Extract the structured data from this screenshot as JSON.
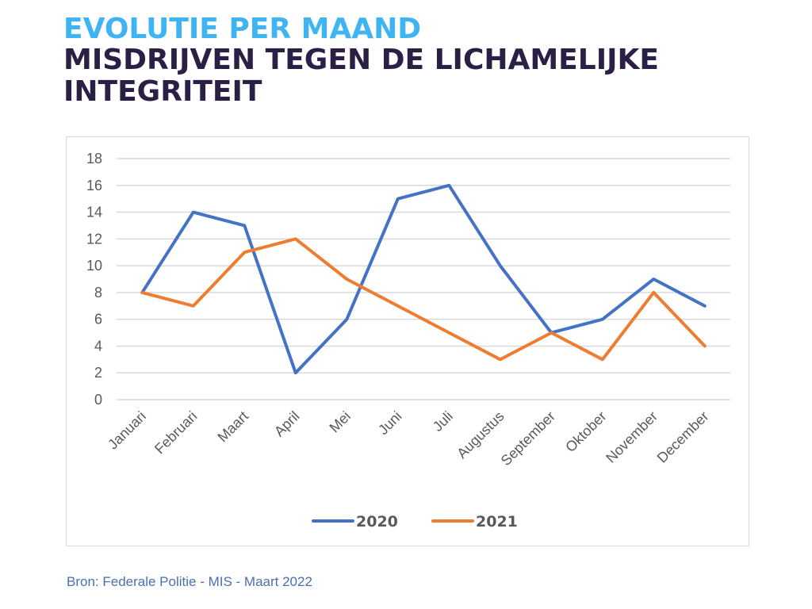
{
  "header": {
    "title_line1": "EVOLUTIE PER MAAND",
    "title_line2": "MISDRIJVEN TEGEN DE LICHAMELIJKE INTEGRITEIT"
  },
  "footer": {
    "source": "Bron: Federale Politie - MIS - Maart 2022"
  },
  "colors": {
    "accent_title": "#3fb4f2",
    "main_title": "#2b1f45",
    "series_2020": "#4472c4",
    "series_2021": "#ed7d31"
  },
  "chart_data": {
    "type": "line",
    "title": "",
    "xlabel": "",
    "ylabel": "",
    "ylim": [
      0,
      18
    ],
    "yticks": [
      0,
      2,
      4,
      6,
      8,
      10,
      12,
      14,
      16,
      18
    ],
    "grid": true,
    "legend": "bottom-center",
    "categories": [
      "Januari",
      "Februari",
      "Maart",
      "April",
      "Mei",
      "Juni",
      "Juli",
      "Augustus",
      "September",
      "Oktober",
      "November",
      "December"
    ],
    "series": [
      {
        "name": "2020",
        "color": "#4472c4",
        "values": [
          8,
          14,
          13,
          2,
          6,
          15,
          16,
          10,
          5,
          6,
          9,
          7
        ]
      },
      {
        "name": "2021",
        "color": "#ed7d31",
        "values": [
          8,
          7,
          11,
          12,
          9,
          7,
          5,
          3,
          5,
          3,
          8,
          4
        ]
      }
    ]
  }
}
